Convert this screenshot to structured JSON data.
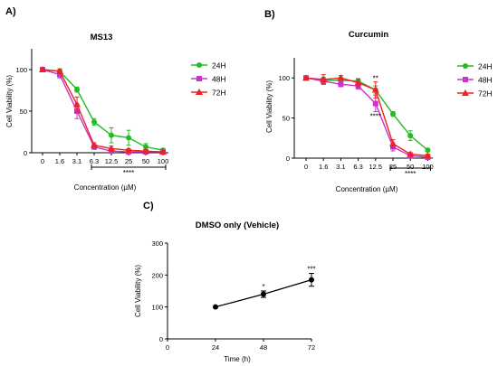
{
  "panel_labels": {
    "a": "A)",
    "b": "B)",
    "c": "C)"
  },
  "colors": {
    "24H": "#22bb22",
    "48H": "#cc33cc",
    "72H": "#ee2222",
    "vehicle": "#000000"
  },
  "chart_data": [
    {
      "id": "A",
      "type": "line",
      "title": "MS13",
      "xlabel": "Concentration (µM)",
      "ylabel": "Cell Viability (%)",
      "categories": [
        "0",
        "1.6",
        "3.1",
        "6.3",
        "12.5",
        "25",
        "50",
        "100"
      ],
      "yticks": [
        "0",
        "50",
        "100"
      ],
      "ylim": [
        0,
        125
      ],
      "legend_position": "right",
      "series": [
        {
          "name": "24H",
          "marker": "circle",
          "values": [
            100,
            98,
            76,
            37,
            21,
            18,
            7,
            3
          ],
          "errors": [
            1,
            3,
            3,
            4,
            9,
            9,
            4,
            2
          ]
        },
        {
          "name": "48H",
          "marker": "square",
          "values": [
            100,
            94,
            50,
            7,
            2,
            1,
            1,
            1
          ],
          "errors": [
            1,
            4,
            9,
            3,
            2,
            1,
            1,
            1
          ]
        },
        {
          "name": "72H",
          "marker": "triangle",
          "values": [
            100,
            98,
            58,
            9,
            5,
            3,
            2,
            1
          ],
          "errors": [
            1,
            2,
            9,
            3,
            3,
            2,
            1,
            1
          ]
        }
      ],
      "annotations": [
        {
          "text": "****",
          "from": "6.3",
          "to": "100",
          "position": "below-axis"
        }
      ]
    },
    {
      "id": "B",
      "type": "line",
      "title": "Curcumin",
      "xlabel": "Concentration (µM)",
      "ylabel": "Cell Viability (%)",
      "categories": [
        "0",
        "1.6",
        "3.1",
        "6.3",
        "12.5",
        "25",
        "50",
        "100"
      ],
      "yticks": [
        "0",
        "50",
        "100"
      ],
      "ylim": [
        0,
        125
      ],
      "legend_position": "right",
      "series": [
        {
          "name": "24H",
          "marker": "circle",
          "values": [
            100,
            97,
            97,
            96,
            85,
            55,
            28,
            10
          ],
          "errors": [
            1,
            4,
            4,
            3,
            5,
            3,
            6,
            2
          ]
        },
        {
          "name": "48H",
          "marker": "square",
          "values": [
            100,
            96,
            92,
            90,
            68,
            14,
            3,
            1
          ],
          "errors": [
            1,
            4,
            3,
            4,
            10,
            5,
            2,
            1
          ]
        },
        {
          "name": "72H",
          "marker": "triangle",
          "values": [
            100,
            98,
            100,
            94,
            85,
            18,
            5,
            3
          ],
          "errors": [
            1,
            6,
            3,
            5,
            10,
            5,
            2,
            2
          ]
        }
      ],
      "annotations": [
        {
          "text": "**",
          "at": "12.5",
          "position": "above-point"
        },
        {
          "text": "****",
          "at": "12.5",
          "position": "below-point"
        },
        {
          "text": "****",
          "from": "25",
          "to": "100",
          "position": "below-axis"
        }
      ]
    },
    {
      "id": "C",
      "type": "line",
      "title": "DMSO only (Vehicle)",
      "xlabel": "Time (h)",
      "ylabel": "Cell Viability (%)",
      "xticks": [
        "0",
        "24",
        "48",
        "72"
      ],
      "yticks": [
        "0",
        "100",
        "200",
        "300"
      ],
      "xlim": [
        0,
        72
      ],
      "ylim": [
        0,
        300
      ],
      "series": [
        {
          "marker": "circle",
          "x": [
            24,
            48,
            72
          ],
          "values": [
            100,
            140,
            185
          ],
          "errors": [
            0,
            10,
            20
          ]
        }
      ],
      "annotations": [
        {
          "text": "*",
          "at": 48,
          "position": "above-point"
        },
        {
          "text": "***",
          "at": 72,
          "position": "above-point"
        }
      ]
    }
  ]
}
